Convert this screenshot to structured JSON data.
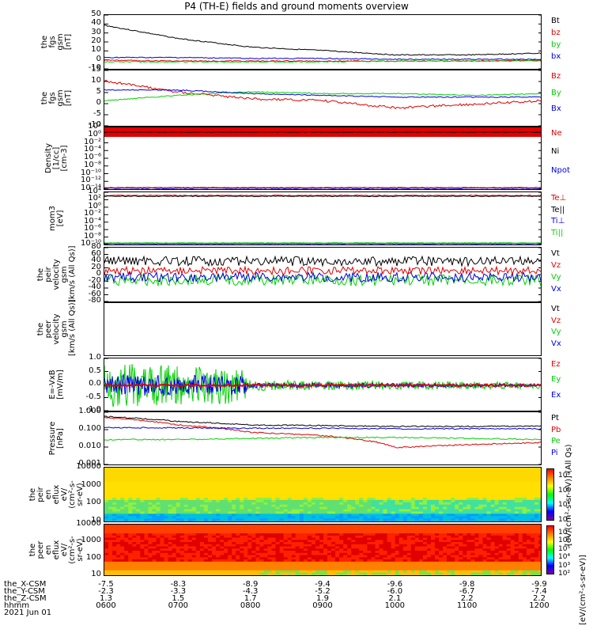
{
  "title": "P4 (TH-E) fields and ground moments overview",
  "colors": {
    "black": "#000000",
    "red": "#e00000",
    "green": "#00d000",
    "blue": "#0000e0"
  },
  "chart_data": [
    {
      "id": "fgs",
      "type": "line",
      "ylabel": [
        "the",
        "fgs",
        "gsm",
        "[nT]"
      ],
      "ylim": [
        -10,
        50
      ],
      "yticks": [
        "50",
        "40",
        "30",
        "20",
        "10",
        "0",
        "-10"
      ],
      "legend": [
        {
          "name": "Bt",
          "color": "#000000"
        },
        {
          "name": "bz",
          "color": "#e00000"
        },
        {
          "name": "by",
          "color": "#00d000"
        },
        {
          "name": "bx",
          "color": "#0000e0"
        }
      ],
      "x": [
        "0600",
        "0700",
        "0800",
        "0900",
        "1000",
        "1100",
        "1200"
      ],
      "series": [
        {
          "name": "Bt",
          "values": [
            40,
            25,
            15,
            11,
            6,
            6,
            8
          ]
        },
        {
          "name": "bz",
          "values": [
            0,
            -1,
            -1,
            -1,
            -1,
            -1,
            0
          ]
        },
        {
          "name": "by",
          "values": [
            -2,
            -2,
            -2,
            -2,
            -1,
            -1,
            -1
          ]
        },
        {
          "name": "bx",
          "values": [
            3,
            3,
            2,
            2,
            1,
            1,
            1
          ]
        }
      ]
    },
    {
      "id": "fgs2",
      "type": "line",
      "ylabel": [
        "the",
        "fgs",
        "gsm",
        "[nT]"
      ],
      "ylim": [
        -15,
        15
      ],
      "yticks": [
        "15",
        "10",
        "5",
        "0",
        "-5",
        "-10"
      ],
      "legend": [
        {
          "name": "Bz",
          "color": "#e00000"
        },
        {
          "name": "By",
          "color": "#00d000"
        },
        {
          "name": "Bx",
          "color": "#0000e0"
        }
      ],
      "x": [
        "0600",
        "0700",
        "0800",
        "0900",
        "1000",
        "1100",
        "1200"
      ],
      "series": [
        {
          "name": "Bz",
          "values": [
            10,
            4,
            0,
            -1,
            -5,
            -3,
            -1
          ]
        },
        {
          "name": "By",
          "values": [
            -1,
            2,
            4,
            3,
            3,
            2,
            3
          ]
        },
        {
          "name": "Bx",
          "values": [
            5,
            5,
            3,
            2,
            1,
            1,
            1
          ]
        }
      ]
    },
    {
      "id": "density",
      "type": "line",
      "ylabel": [
        "Density",
        "[1/cc]",
        "[cm-3]"
      ],
      "yticks": [
        "10²",
        "10⁰",
        "10⁻²",
        "10⁻⁴",
        "10⁻⁶",
        "10⁻⁸",
        "10⁻¹⁰",
        "10⁻¹²",
        "10⁻¹⁴"
      ],
      "legend": [
        {
          "name": "Ne",
          "color": "#e00000"
        },
        {
          "name": "Ni",
          "color": "#000000"
        },
        {
          "name": "Npot",
          "color": "#0000e0"
        }
      ]
    },
    {
      "id": "temp",
      "type": "line",
      "ylabel": [
        "mom3",
        "[eV]"
      ],
      "yticks": [
        "10⁴",
        "10²",
        "10⁰",
        "10⁻²",
        "10⁻⁴",
        "10⁻⁶",
        "10⁻⁸",
        "10⁻¹⁰"
      ],
      "legend": [
        {
          "name": "Te⊥",
          "color": "#e00000"
        },
        {
          "name": "Te||",
          "color": "#000000"
        },
        {
          "name": "Ti⊥",
          "color": "#0000e0"
        },
        {
          "name": "Ti||",
          "color": "#00d000"
        }
      ]
    },
    {
      "id": "peirvel",
      "type": "line",
      "ylabel": [
        "the",
        "peir",
        "velocity",
        "gsm",
        "[km/s (All Qs)]"
      ],
      "ylim": [
        -100,
        80
      ],
      "yticks": [
        "80",
        "60",
        "40",
        "20",
        "0",
        "-20",
        "-40",
        "-60",
        "-80"
      ],
      "legend": [
        {
          "name": "Vt",
          "color": "#000000"
        },
        {
          "name": "Vz",
          "color": "#e00000"
        },
        {
          "name": "Vy",
          "color": "#00d000"
        },
        {
          "name": "Vx",
          "color": "#0000e0"
        }
      ]
    },
    {
      "id": "peervel",
      "type": "line",
      "ylabel": [
        "the",
        "peer",
        "velocity",
        "gsm",
        "[km/s (All Qs)]"
      ],
      "legend": [
        {
          "name": "Vt",
          "color": "#000000"
        },
        {
          "name": "Vz",
          "color": "#e00000"
        },
        {
          "name": "Vy",
          "color": "#00d000"
        },
        {
          "name": "Vx",
          "color": "#0000e0"
        }
      ]
    },
    {
      "id": "efield",
      "type": "line",
      "ylabel": [
        "E=-VxB",
        "[mV/m]"
      ],
      "ylim": [
        -1.0,
        1.0
      ],
      "yticks": [
        "1.0",
        "0.5",
        "0.0",
        "-0.5",
        "-1.0"
      ],
      "legend": [
        {
          "name": "Ez",
          "color": "#e00000"
        },
        {
          "name": "Ey",
          "color": "#00d000"
        },
        {
          "name": "Ex",
          "color": "#0000e0"
        }
      ]
    },
    {
      "id": "pressure",
      "type": "line",
      "ylabel": [
        "Pressure",
        "[nPa]"
      ],
      "scale": "log",
      "yticks": [
        "1.000",
        "0.100",
        "0.010",
        "0.001"
      ],
      "legend": [
        {
          "name": "Pt",
          "color": "#000000"
        },
        {
          "name": "Pb",
          "color": "#e00000"
        },
        {
          "name": "Pe",
          "color": "#00d000"
        },
        {
          "name": "Pi",
          "color": "#0000e0"
        }
      ],
      "x": [
        "0600",
        "0700",
        "0800",
        "0900",
        "1000",
        "1100",
        "1200"
      ],
      "series": [
        {
          "name": "Pt",
          "values": [
            0.7,
            0.35,
            0.22,
            0.2,
            0.18,
            0.18,
            0.19
          ]
        },
        {
          "name": "Pb",
          "values": [
            0.6,
            0.22,
            0.08,
            0.05,
            0.01,
            0.015,
            0.02
          ]
        },
        {
          "name": "Pe",
          "values": [
            0.03,
            0.03,
            0.035,
            0.04,
            0.04,
            0.035,
            0.03
          ]
        },
        {
          "name": "Pi",
          "values": [
            0.15,
            0.15,
            0.14,
            0.14,
            0.13,
            0.13,
            0.13
          ]
        }
      ]
    },
    {
      "id": "peir_flux",
      "type": "heatmap",
      "ylabel": [
        "the",
        "peir",
        "en",
        "eflux",
        "eV/",
        "(cm²-s-",
        "sr-eV)"
      ],
      "scale": "log",
      "yticks": [
        "10000",
        "1000",
        "100",
        "10"
      ],
      "colorbar": {
        "labels": [
          "10⁸",
          "10⁶",
          "10⁴",
          "10²"
        ],
        "title": "[eV/(cm²-s-sr-eV)]  (All Qs)"
      }
    },
    {
      "id": "peer_flux",
      "type": "heatmap",
      "ylabel": [
        "the",
        "peer",
        "en",
        "eflux",
        "eV/",
        "(cm²-s-",
        "sr-eV)"
      ],
      "scale": "log",
      "yticks": [
        "10000",
        "1000",
        "100",
        "10"
      ],
      "colorbar": {
        "labels": [
          "10⁷",
          "10⁶",
          "10⁵",
          "10⁴",
          "10³",
          "10²"
        ],
        "title": "[eV/(cm²-s-sr-eV)]"
      }
    }
  ],
  "xaxis": {
    "rows": [
      {
        "label": "the_X-CSM",
        "values": [
          "-7.5",
          "-8.3",
          "-8.9",
          "-9.4",
          "-9.6",
          "-9.8",
          "-9.9"
        ]
      },
      {
        "label": "the_Y-CSM",
        "values": [
          "-2.3",
          "-3.3",
          "-4.3",
          "-5.2",
          "-6.0",
          "-6.7",
          "-7.4"
        ]
      },
      {
        "label": "the_Z-CSM",
        "values": [
          "1.3",
          "1.5",
          "1.7",
          "1.9",
          "2.1",
          "2.2",
          "2.2"
        ]
      },
      {
        "label": "hhmm",
        "values": [
          "0600",
          "0700",
          "0800",
          "0900",
          "1000",
          "1100",
          "1200"
        ]
      }
    ],
    "date": "2021 Jun 01"
  }
}
